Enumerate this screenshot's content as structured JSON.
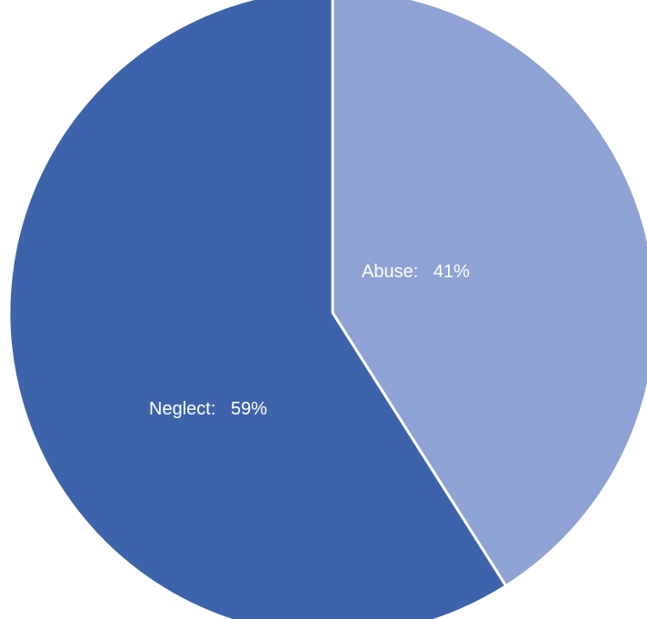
{
  "chart_data": {
    "type": "pie",
    "title": "",
    "slices": [
      {
        "label": "Abuse",
        "value": 41,
        "display": "Abuse:   41%",
        "color": "#8EA3D4"
      },
      {
        "label": "Neglect",
        "value": 59,
        "display": "Neglect:   59%",
        "color": "#3D64AA"
      }
    ],
    "legend": "none",
    "start_angle": "12 o'clock",
    "direction": "clockwise"
  }
}
